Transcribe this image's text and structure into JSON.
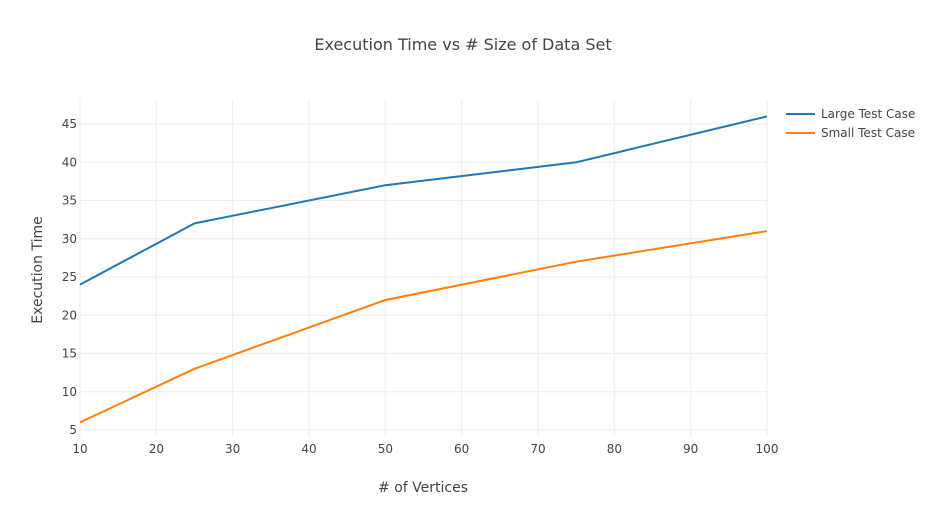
{
  "chart_data": {
    "type": "line",
    "title": "Execution Time vs # Size of Data Set",
    "xlabel": "# of Vertices",
    "ylabel": "Execution Time",
    "xlim": [
      10,
      100
    ],
    "ylim": [
      5,
      48
    ],
    "x_ticks": [
      10,
      20,
      30,
      40,
      50,
      60,
      70,
      80,
      90,
      100
    ],
    "y_ticks": [
      5,
      10,
      15,
      20,
      25,
      30,
      35,
      40,
      45
    ],
    "grid": true,
    "legend_position": "top-right",
    "x": [
      10,
      25,
      50,
      75,
      100
    ],
    "series": [
      {
        "name": "Large Test Case",
        "color": "#1f77b4",
        "values": [
          24,
          32,
          37,
          40,
          46
        ]
      },
      {
        "name": "Small Test Case",
        "color": "#ff7f0e",
        "values": [
          6,
          13,
          22,
          27,
          31
        ]
      }
    ]
  }
}
